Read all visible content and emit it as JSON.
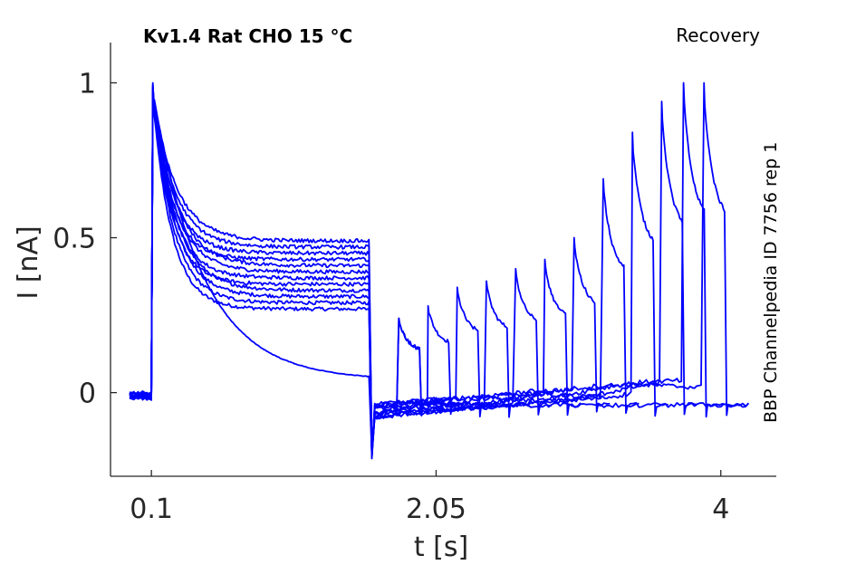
{
  "chart_data": {
    "type": "line",
    "title": "Kv1.4  Rat  CHO  15 °C",
    "protocol": "Recovery",
    "side_label": "BBP Channelpedia ID 7756 rep 1",
    "xlabel": "t [s]",
    "ylabel": "I [nA]",
    "xticks": [
      "0.1",
      "2.05",
      "4"
    ],
    "yticks": [
      "0",
      "0.5",
      "1"
    ],
    "xlim": [
      -0.18,
      4.38
    ],
    "ylim": [
      -0.27,
      1.13
    ],
    "color": "#0000ff",
    "prepulse": {
      "start": 0.1,
      "end": 1.6,
      "holding": -0.01,
      "sweep_plateaus": [
        0.27,
        0.29,
        0.31,
        0.33,
        0.35,
        0.37,
        0.39,
        0.41,
        0.43,
        0.45,
        0.47,
        0.49
      ],
      "slow_sweep_plateau": 0.04
    },
    "recovery": {
      "baseline_start": -0.08,
      "baseline_end": 0.05,
      "test_pulse_onsets": [
        1.79,
        1.99,
        2.19,
        2.39,
        2.59,
        2.79,
        2.99,
        3.19,
        3.39,
        3.59,
        3.74,
        3.88
      ],
      "test_pulse_peaks": [
        0.24,
        0.28,
        0.34,
        0.36,
        0.4,
        0.43,
        0.5,
        0.69,
        0.84,
        0.94,
        1.0,
        1.0
      ],
      "test_pulse_width": 0.15
    }
  }
}
